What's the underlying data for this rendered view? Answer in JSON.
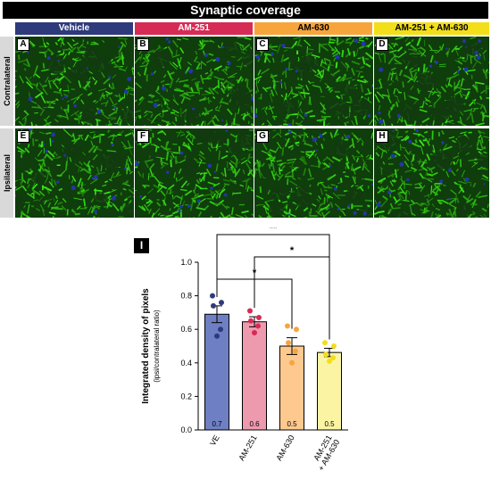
{
  "figure": {
    "title": "Synaptic coverage",
    "columns": [
      {
        "label": "Vehicle",
        "color": "#2e3a7c",
        "text_color": "#ffffff"
      },
      {
        "label": "AM-251",
        "color": "#d62b55",
        "text_color": "#ffffff"
      },
      {
        "label": "AM-630",
        "color": "#f7a53b",
        "text_color": "#000000"
      },
      {
        "label": "AM-251 + AM-630",
        "color": "#f3de1a",
        "text_color": "#000000"
      }
    ],
    "rows": [
      {
        "label": "Contralateral",
        "panels": [
          "A",
          "B",
          "C",
          "D"
        ]
      },
      {
        "label": "Ipsilateral",
        "panels": [
          "E",
          "F",
          "G",
          "H"
        ]
      }
    ],
    "chart_badge": "I"
  },
  "chart_data": {
    "type": "bar",
    "categories": [
      "VE",
      "AM-251",
      "AM-630",
      "AM-251\n+ AM-630"
    ],
    "values": [
      0.69,
      0.645,
      0.5,
      0.462
    ],
    "errors": [
      0.05,
      0.03,
      0.05,
      0.025
    ],
    "bar_labels": [
      "0.7",
      "0.6",
      "0.5",
      "0.5"
    ],
    "colors": [
      "#6f7fc4",
      "#ee9aae",
      "#fdc98f",
      "#fbf5a3"
    ],
    "point_colors": [
      "#2e3a7c",
      "#d62b55",
      "#f7a53b",
      "#f3de1a"
    ],
    "points": [
      [
        0.8,
        0.76,
        0.74,
        0.6,
        0.56
      ],
      [
        0.71,
        0.67,
        0.65,
        0.62,
        0.58
      ],
      [
        0.62,
        0.6,
        0.52,
        0.47,
        0.4
      ],
      [
        0.52,
        0.5,
        0.45,
        0.43,
        0.41
      ]
    ],
    "ylabel": "Integrated density of pixels",
    "ylabel_sub": "(ipsi/contralateral ratio)",
    "yticks": [
      "0.0",
      "0.2",
      "0.4",
      "0.6",
      "0.8",
      "1.0"
    ],
    "ylim": [
      0,
      1.0
    ],
    "significance": [
      {
        "from": 0,
        "to": 3,
        "label": "**"
      },
      {
        "from": 1,
        "to": 3,
        "label": "*"
      },
      {
        "from": 0,
        "to": 2,
        "label": "*"
      }
    ]
  }
}
